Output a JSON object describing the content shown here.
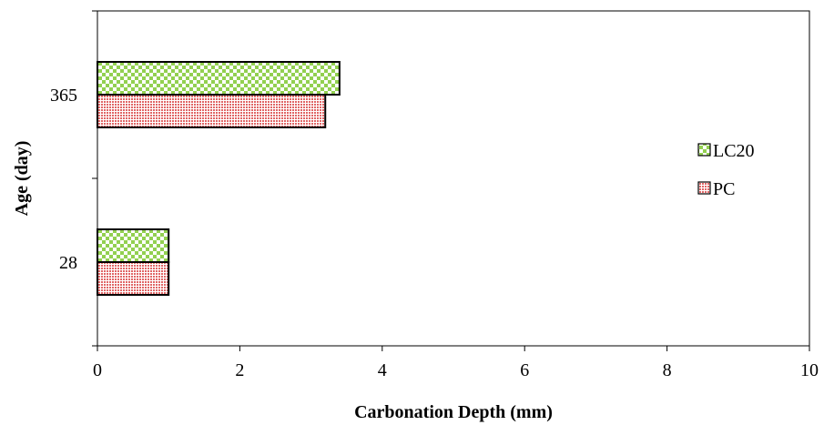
{
  "chart_data": {
    "type": "bar",
    "orientation": "horizontal",
    "title": "",
    "xlabel": "Carbonation Depth (mm)",
    "ylabel": "Age  (day)",
    "categories": [
      "28",
      "365"
    ],
    "series": [
      {
        "name": "LC20",
        "values": [
          1.0,
          3.4
        ],
        "color": "#92d050",
        "pattern": "checker"
      },
      {
        "name": "PC",
        "values": [
          1.0,
          3.2
        ],
        "color": "#e06666",
        "pattern": "dots"
      }
    ],
    "xlim": [
      0,
      10
    ],
    "xticks": [
      "0",
      "2",
      "4",
      "6",
      "8",
      "10"
    ],
    "grid": false,
    "legend_position": "right"
  }
}
